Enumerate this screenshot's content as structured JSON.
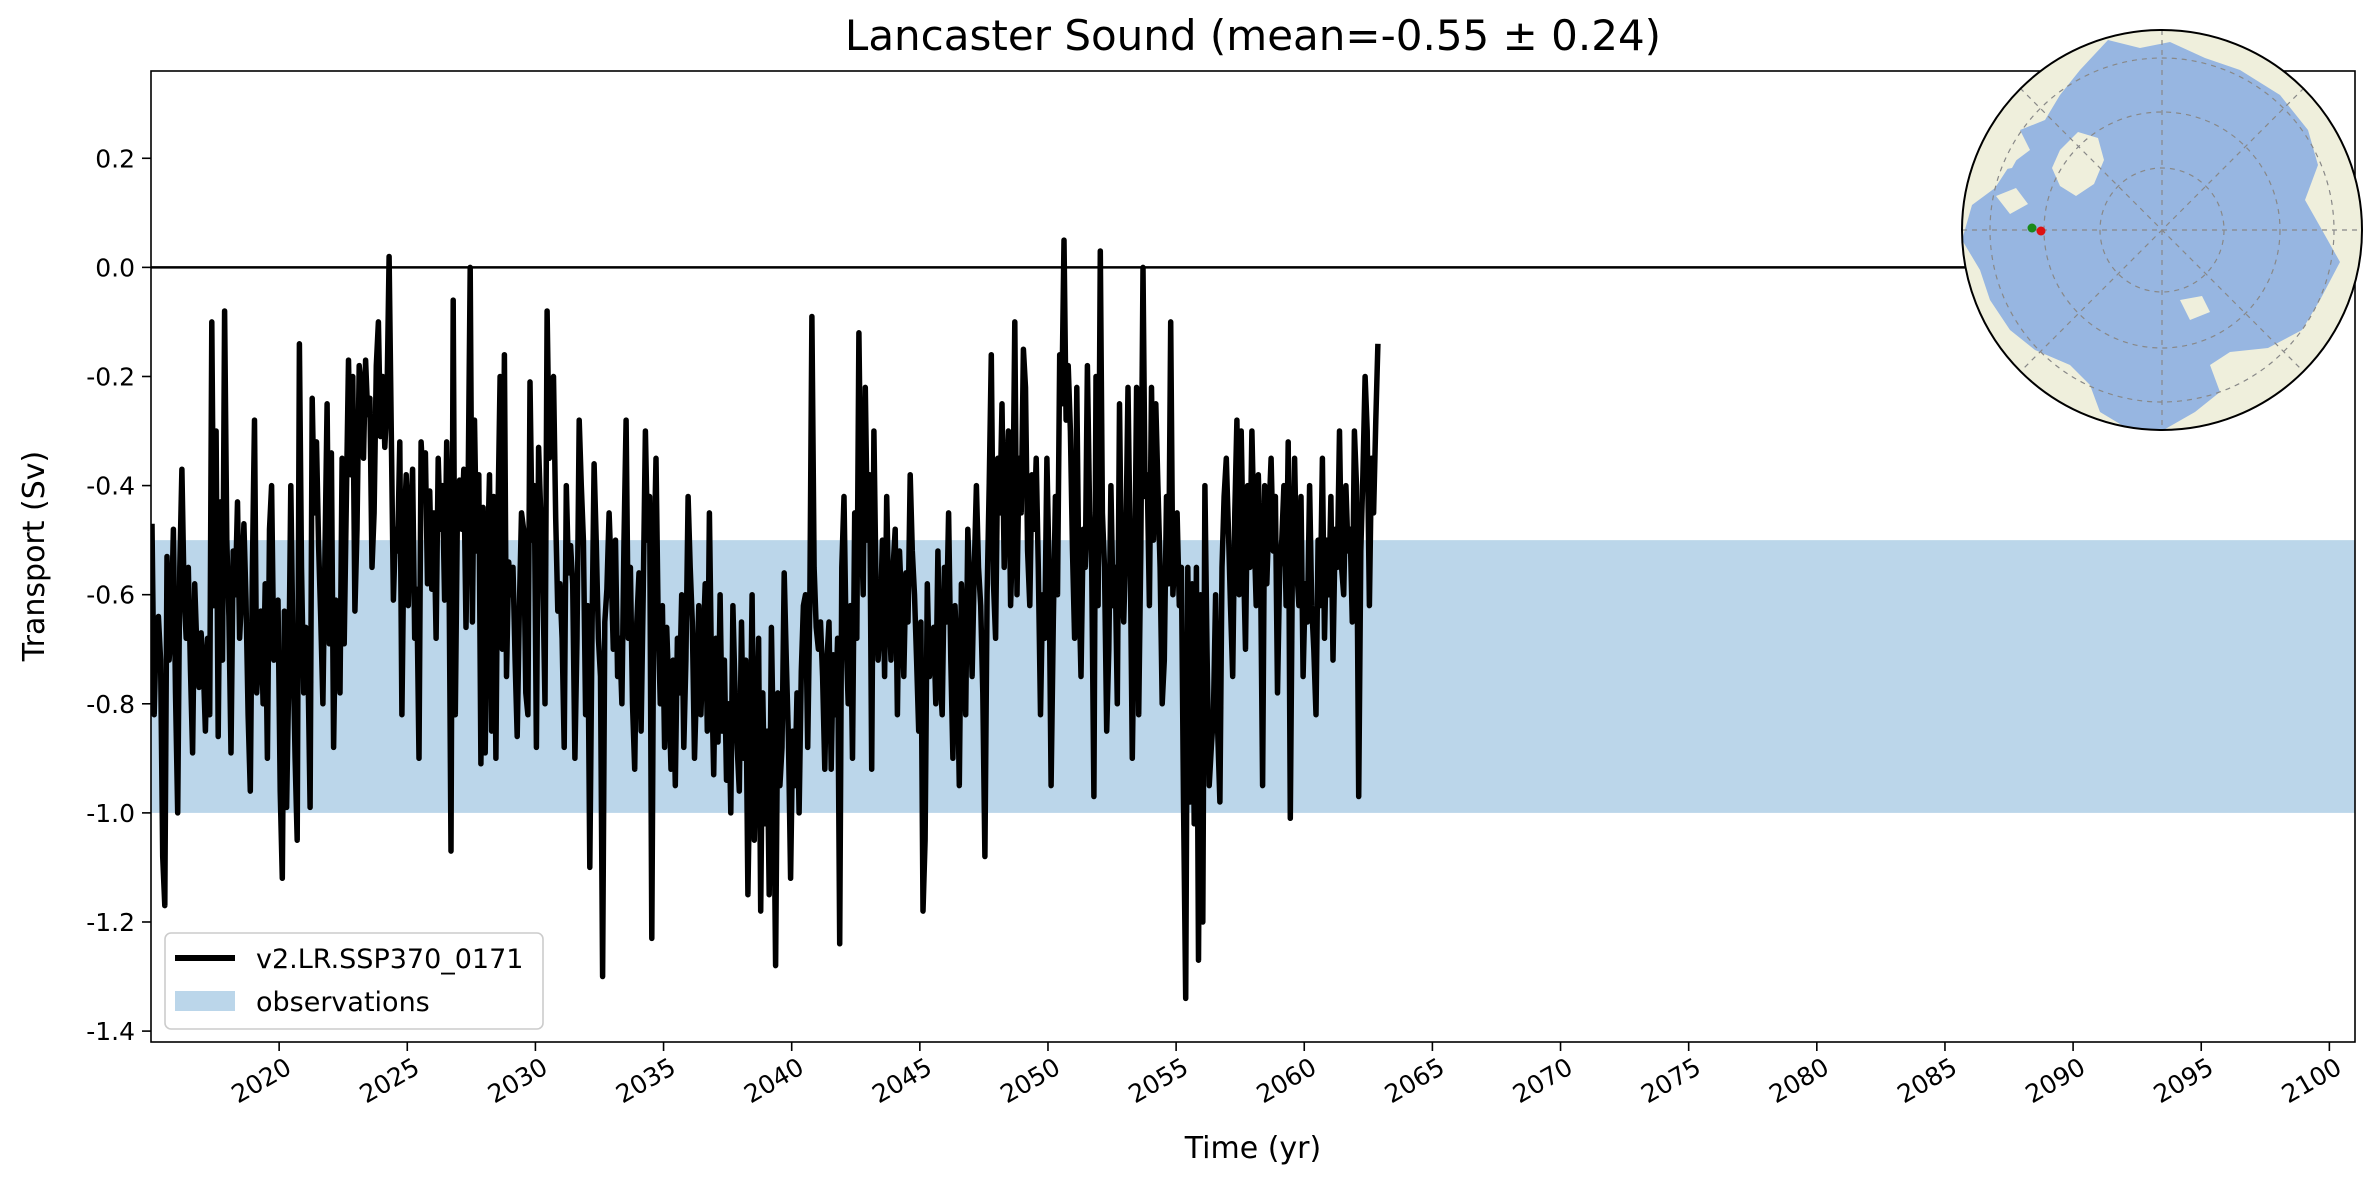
{
  "chart_data": {
    "type": "line",
    "title": "Lancaster Sound (mean=-0.55 ± 0.24)",
    "xlabel": "Time (yr)",
    "ylabel": "Transport (Sv)",
    "xlim": [
      2015.0,
      2101.0
    ],
    "ylim": [
      -1.42,
      0.36
    ],
    "x_ticks": [
      2020,
      2025,
      2030,
      2035,
      2040,
      2045,
      2050,
      2055,
      2060,
      2065,
      2070,
      2075,
      2080,
      2085,
      2090,
      2095,
      2100
    ],
    "y_ticks": [
      0.2,
      0.0,
      -0.2,
      -0.4,
      -0.6,
      -0.8,
      -1.0,
      -1.2,
      -1.4
    ],
    "zero_line": 0.0,
    "observations_band": [
      -1.0,
      -0.5
    ],
    "legend": {
      "location": "bottom-left",
      "entries": [
        "v2.LR.SSP370_0171",
        "observations"
      ]
    },
    "inset": "north-polar-map",
    "colors": {
      "line": "#000000",
      "band": "#bbd6ea",
      "ocean": "#97b6e1",
      "land": "#efefdc",
      "marker_a": "#1a8a1a",
      "marker_b": "#dd1111"
    },
    "series": [
      {
        "name": "v2.LR.SSP370_0171",
        "start_year": 2015.04,
        "step_years": 0.0833333,
        "values": [
          -0.47,
          -0.82,
          -0.66,
          -0.64,
          -0.72,
          -1.08,
          -1.17,
          -0.53,
          -0.72,
          -0.66,
          -0.48,
          -0.78,
          -1.0,
          -0.55,
          -0.37,
          -0.6,
          -0.68,
          -0.55,
          -0.74,
          -0.89,
          -0.58,
          -0.7,
          -0.77,
          -0.67,
          -0.73,
          -0.85,
          -0.68,
          -0.82,
          -0.1,
          -0.62,
          -0.3,
          -0.86,
          -0.43,
          -0.72,
          -0.08,
          -0.5,
          -0.64,
          -0.89,
          -0.52,
          -0.6,
          -0.43,
          -0.68,
          -0.6,
          -0.47,
          -0.61,
          -0.82,
          -0.96,
          -0.55,
          -0.28,
          -0.78,
          -0.7,
          -0.63,
          -0.8,
          -0.58,
          -0.9,
          -0.48,
          -0.4,
          -0.72,
          -0.68,
          -0.61,
          -0.96,
          -1.12,
          -0.63,
          -0.99,
          -0.76,
          -0.4,
          -0.7,
          -0.9,
          -1.05,
          -0.14,
          -0.55,
          -0.78,
          -0.66,
          -0.72,
          -0.99,
          -0.24,
          -0.45,
          -0.32,
          -0.51,
          -0.64,
          -0.8,
          -0.52,
          -0.25,
          -0.69,
          -0.34,
          -0.88,
          -0.61,
          -0.63,
          -0.78,
          -0.35,
          -0.69,
          -0.42,
          -0.17,
          -0.38,
          -0.2,
          -0.63,
          -0.48,
          -0.18,
          -0.22,
          -0.35,
          -0.17,
          -0.27,
          -0.24,
          -0.55,
          -0.45,
          -0.18,
          -0.1,
          -0.31,
          -0.2,
          -0.33,
          -0.25,
          0.02,
          -0.29,
          -0.61,
          -0.48,
          -0.52,
          -0.32,
          -0.82,
          -0.49,
          -0.38,
          -0.62,
          -0.46,
          -0.37,
          -0.68,
          -0.59,
          -0.9,
          -0.32,
          -0.4,
          -0.34,
          -0.58,
          -0.41,
          -0.59,
          -0.45,
          -0.68,
          -0.35,
          -0.48,
          -0.4,
          -0.61,
          -0.32,
          -0.52,
          -1.07,
          -0.06,
          -0.82,
          -0.45,
          -0.39,
          -0.48,
          -0.37,
          -0.66,
          -0.41,
          0.0,
          -0.65,
          -0.28,
          -0.52,
          -0.38,
          -0.91,
          -0.44,
          -0.89,
          -0.55,
          -0.38,
          -0.85,
          -0.42,
          -0.9,
          -0.45,
          -0.2,
          -0.7,
          -0.16,
          -0.75,
          -0.54,
          -0.6,
          -0.55,
          -0.72,
          -0.86,
          -0.62,
          -0.45,
          -0.48,
          -0.78,
          -0.82,
          -0.21,
          -0.5,
          -0.4,
          -0.88,
          -0.33,
          -0.45,
          -0.58,
          -0.8,
          -0.08,
          -0.35,
          -0.28,
          -0.2,
          -0.46,
          -0.63,
          -0.58,
          -0.68,
          -0.88,
          -0.4,
          -0.56,
          -0.51,
          -0.58,
          -0.9,
          -0.68,
          -0.28,
          -0.4,
          -0.5,
          -0.82,
          -0.62,
          -1.1,
          -0.67,
          -0.36,
          -0.5,
          -0.68,
          -0.75,
          -1.3,
          -0.65,
          -0.59,
          -0.45,
          -0.56,
          -0.7,
          -0.5,
          -0.75,
          -0.68,
          -0.8,
          -0.5,
          -0.28,
          -0.68,
          -0.55,
          -0.8,
          -0.92,
          -0.65,
          -0.56,
          -0.85,
          -0.6,
          -0.3,
          -0.5,
          -0.42,
          -1.23,
          -0.55,
          -0.35,
          -0.65,
          -0.8,
          -0.62,
          -0.88,
          -0.66,
          -0.78,
          -0.92,
          -0.72,
          -0.95,
          -0.68,
          -0.78,
          -0.6,
          -0.88,
          -0.72,
          -0.42,
          -0.55,
          -0.65,
          -0.9,
          -0.76,
          -0.62,
          -0.82,
          -0.7,
          -0.58,
          -0.85,
          -0.45,
          -0.75,
          -0.93,
          -0.68,
          -0.87,
          -0.6,
          -0.85,
          -0.72,
          -0.94,
          -0.8,
          -1.0,
          -0.62,
          -0.78,
          -0.88,
          -0.96,
          -0.65,
          -0.9,
          -0.72,
          -1.15,
          -0.9,
          -0.6,
          -1.05,
          -0.85,
          -0.68,
          -1.18,
          -0.78,
          -1.02,
          -0.85,
          -1.15,
          -0.66,
          -0.9,
          -1.28,
          -0.78,
          -0.95,
          -0.88,
          -0.56,
          -0.72,
          -0.87,
          -1.12,
          -0.85,
          -0.95,
          -0.78,
          -1.0,
          -0.74,
          -0.62,
          -0.6,
          -0.88,
          -0.62,
          -0.09,
          -0.55,
          -0.66,
          -0.7,
          -0.65,
          -0.75,
          -0.92,
          -0.72,
          -0.65,
          -0.92,
          -0.71,
          -0.82,
          -0.68,
          -1.24,
          -0.55,
          -0.42,
          -0.68,
          -0.8,
          -0.62,
          -0.9,
          -0.45,
          -0.68,
          -0.12,
          -0.45,
          -0.6,
          -0.22,
          -0.5,
          -0.38,
          -0.92,
          -0.3,
          -0.58,
          -0.72,
          -0.65,
          -0.5,
          -0.75,
          -0.42,
          -0.62,
          -0.72,
          -0.55,
          -0.48,
          -0.82,
          -0.52,
          -0.62,
          -0.75,
          -0.56,
          -0.65,
          -0.38,
          -0.52,
          -0.6,
          -0.72,
          -0.85,
          -0.65,
          -1.18,
          -1.05,
          -0.58,
          -0.75,
          -0.7,
          -0.66,
          -0.8,
          -0.52,
          -0.75,
          -0.82,
          -0.55,
          -0.65,
          -0.45,
          -0.72,
          -0.9,
          -0.62,
          -0.72,
          -0.95,
          -0.58,
          -0.68,
          -0.82,
          -0.48,
          -0.6,
          -0.75,
          -0.55,
          -0.4,
          -0.55,
          -0.62,
          -0.78,
          -1.08,
          -0.6,
          -0.4,
          -0.16,
          -0.58,
          -0.68,
          -0.35,
          -0.45,
          -0.25,
          -0.55,
          -0.4,
          -0.3,
          -0.62,
          -0.48,
          -0.1,
          -0.6,
          -0.35,
          -0.45,
          -0.15,
          -0.22,
          -0.52,
          -0.62,
          -0.38,
          -0.48,
          -0.35,
          -0.55,
          -0.82,
          -0.6,
          -0.68,
          -0.35,
          -0.55,
          -0.95,
          -0.65,
          -0.42,
          -0.6,
          -0.16,
          -0.25,
          0.05,
          -0.28,
          -0.18,
          -0.3,
          -0.52,
          -0.68,
          -0.22,
          -0.58,
          -0.75,
          -0.48,
          -0.55,
          -0.18,
          -0.45,
          -0.55,
          -0.97,
          -0.2,
          -0.62,
          0.03,
          -0.45,
          -0.55,
          -0.85,
          -0.7,
          -0.4,
          -0.62,
          -0.55,
          -0.8,
          -0.25,
          -0.58,
          -0.65,
          -0.5,
          -0.22,
          -0.52,
          -0.9,
          -0.62,
          -0.22,
          -0.82,
          -0.52,
          -0.0,
          -0.42,
          -0.38,
          -0.62,
          -0.22,
          -0.5,
          -0.25,
          -0.4,
          -0.55,
          -0.8,
          -0.72,
          -0.42,
          -0.58,
          -0.1,
          -0.6,
          -0.52,
          -0.45,
          -0.62,
          -0.55,
          -0.98,
          -1.34,
          -0.55,
          -0.98,
          -0.58,
          -1.02,
          -0.55,
          -1.27,
          -0.6,
          -1.2,
          -0.4,
          -0.7,
          -0.95,
          -0.88,
          -0.82,
          -0.6,
          -0.85,
          -0.98,
          -0.55,
          -0.42,
          -0.35,
          -0.48,
          -0.62,
          -0.75,
          -0.45,
          -0.28,
          -0.6,
          -0.3,
          -0.52,
          -0.7,
          -0.4,
          -0.55,
          -0.3,
          -0.48,
          -0.62,
          -0.38,
          -0.52,
          -0.95,
          -0.4,
          -0.58,
          -0.45,
          -0.35,
          -0.52,
          -0.42,
          -0.78,
          -0.55,
          -0.5,
          -0.4,
          -0.62,
          -0.32,
          -1.01,
          -0.52,
          -0.35,
          -0.55,
          -0.62,
          -0.42,
          -0.75,
          -0.58,
          -0.65,
          -0.4,
          -0.62,
          -0.7,
          -0.82,
          -0.5,
          -0.62,
          -0.35,
          -0.68,
          -0.5,
          -0.6,
          -0.42,
          -0.72,
          -0.48,
          -0.55,
          -0.3,
          -0.55,
          -0.6,
          -0.4,
          -0.52,
          -0.48,
          -0.65,
          -0.3,
          -0.4,
          -0.97,
          -0.52,
          -0.38,
          -0.2,
          -0.3,
          -0.62,
          -0.35,
          -0.45,
          -0.28,
          -0.14
        ]
      }
    ]
  }
}
